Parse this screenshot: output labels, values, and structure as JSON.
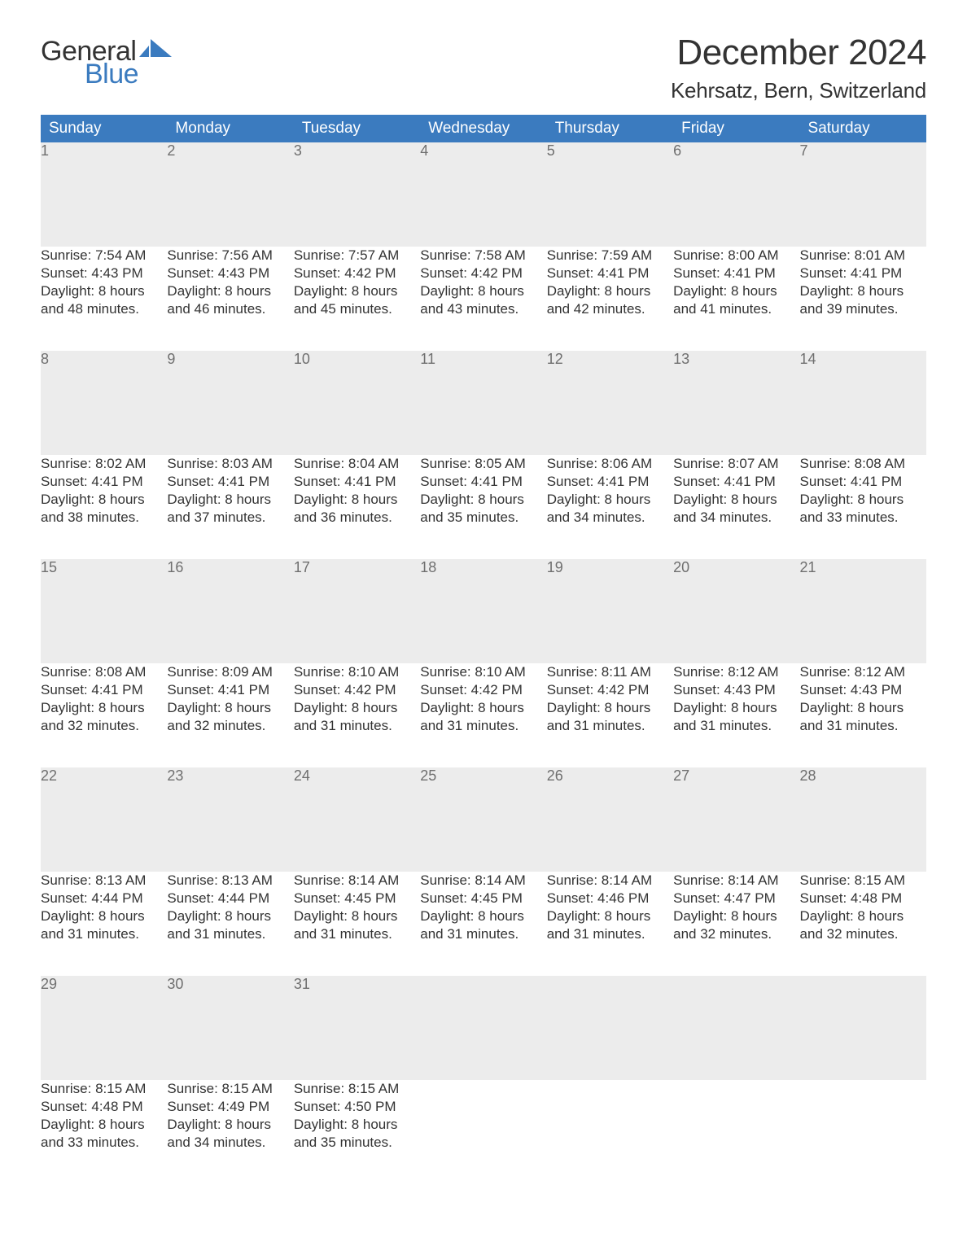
{
  "brand": {
    "word1": "General",
    "word2": "Blue",
    "text_color_dark": "#333333",
    "text_color_blue": "#3b7bbf",
    "sail_color": "#3b7bbf"
  },
  "header": {
    "month_title": "December 2024",
    "location": "Kehrsatz, Bern, Switzerland",
    "title_color": "#333333",
    "title_fontsize": 44,
    "location_fontsize": 26
  },
  "calendar": {
    "type": "table",
    "columns": [
      "Sunday",
      "Monday",
      "Tuesday",
      "Wednesday",
      "Thursday",
      "Friday",
      "Saturday"
    ],
    "header_bg": "#3b7bbf",
    "header_text_color": "#ffffff",
    "header_fontsize": 19,
    "daynum_bg": "#ececec",
    "daynum_color": "#6f6f6f",
    "daynum_fontsize": 18,
    "daynum_top_border_color": "#3b7bbf",
    "cell_bg": "#ffffff",
    "cell_text_color": "#333333",
    "cell_fontsize": 17,
    "weeks": [
      [
        {
          "num": "1",
          "sunrise": "Sunrise: 7:54 AM",
          "sunset": "Sunset: 4:43 PM",
          "day1": "Daylight: 8 hours",
          "day2": "and 48 minutes."
        },
        {
          "num": "2",
          "sunrise": "Sunrise: 7:56 AM",
          "sunset": "Sunset: 4:43 PM",
          "day1": "Daylight: 8 hours",
          "day2": "and 46 minutes."
        },
        {
          "num": "3",
          "sunrise": "Sunrise: 7:57 AM",
          "sunset": "Sunset: 4:42 PM",
          "day1": "Daylight: 8 hours",
          "day2": "and 45 minutes."
        },
        {
          "num": "4",
          "sunrise": "Sunrise: 7:58 AM",
          "sunset": "Sunset: 4:42 PM",
          "day1": "Daylight: 8 hours",
          "day2": "and 43 minutes."
        },
        {
          "num": "5",
          "sunrise": "Sunrise: 7:59 AM",
          "sunset": "Sunset: 4:41 PM",
          "day1": "Daylight: 8 hours",
          "day2": "and 42 minutes."
        },
        {
          "num": "6",
          "sunrise": "Sunrise: 8:00 AM",
          "sunset": "Sunset: 4:41 PM",
          "day1": "Daylight: 8 hours",
          "day2": "and 41 minutes."
        },
        {
          "num": "7",
          "sunrise": "Sunrise: 8:01 AM",
          "sunset": "Sunset: 4:41 PM",
          "day1": "Daylight: 8 hours",
          "day2": "and 39 minutes."
        }
      ],
      [
        {
          "num": "8",
          "sunrise": "Sunrise: 8:02 AM",
          "sunset": "Sunset: 4:41 PM",
          "day1": "Daylight: 8 hours",
          "day2": "and 38 minutes."
        },
        {
          "num": "9",
          "sunrise": "Sunrise: 8:03 AM",
          "sunset": "Sunset: 4:41 PM",
          "day1": "Daylight: 8 hours",
          "day2": "and 37 minutes."
        },
        {
          "num": "10",
          "sunrise": "Sunrise: 8:04 AM",
          "sunset": "Sunset: 4:41 PM",
          "day1": "Daylight: 8 hours",
          "day2": "and 36 minutes."
        },
        {
          "num": "11",
          "sunrise": "Sunrise: 8:05 AM",
          "sunset": "Sunset: 4:41 PM",
          "day1": "Daylight: 8 hours",
          "day2": "and 35 minutes."
        },
        {
          "num": "12",
          "sunrise": "Sunrise: 8:06 AM",
          "sunset": "Sunset: 4:41 PM",
          "day1": "Daylight: 8 hours",
          "day2": "and 34 minutes."
        },
        {
          "num": "13",
          "sunrise": "Sunrise: 8:07 AM",
          "sunset": "Sunset: 4:41 PM",
          "day1": "Daylight: 8 hours",
          "day2": "and 34 minutes."
        },
        {
          "num": "14",
          "sunrise": "Sunrise: 8:08 AM",
          "sunset": "Sunset: 4:41 PM",
          "day1": "Daylight: 8 hours",
          "day2": "and 33 minutes."
        }
      ],
      [
        {
          "num": "15",
          "sunrise": "Sunrise: 8:08 AM",
          "sunset": "Sunset: 4:41 PM",
          "day1": "Daylight: 8 hours",
          "day2": "and 32 minutes."
        },
        {
          "num": "16",
          "sunrise": "Sunrise: 8:09 AM",
          "sunset": "Sunset: 4:41 PM",
          "day1": "Daylight: 8 hours",
          "day2": "and 32 minutes."
        },
        {
          "num": "17",
          "sunrise": "Sunrise: 8:10 AM",
          "sunset": "Sunset: 4:42 PM",
          "day1": "Daylight: 8 hours",
          "day2": "and 31 minutes."
        },
        {
          "num": "18",
          "sunrise": "Sunrise: 8:10 AM",
          "sunset": "Sunset: 4:42 PM",
          "day1": "Daylight: 8 hours",
          "day2": "and 31 minutes."
        },
        {
          "num": "19",
          "sunrise": "Sunrise: 8:11 AM",
          "sunset": "Sunset: 4:42 PM",
          "day1": "Daylight: 8 hours",
          "day2": "and 31 minutes."
        },
        {
          "num": "20",
          "sunrise": "Sunrise: 8:12 AM",
          "sunset": "Sunset: 4:43 PM",
          "day1": "Daylight: 8 hours",
          "day2": "and 31 minutes."
        },
        {
          "num": "21",
          "sunrise": "Sunrise: 8:12 AM",
          "sunset": "Sunset: 4:43 PM",
          "day1": "Daylight: 8 hours",
          "day2": "and 31 minutes."
        }
      ],
      [
        {
          "num": "22",
          "sunrise": "Sunrise: 8:13 AM",
          "sunset": "Sunset: 4:44 PM",
          "day1": "Daylight: 8 hours",
          "day2": "and 31 minutes."
        },
        {
          "num": "23",
          "sunrise": "Sunrise: 8:13 AM",
          "sunset": "Sunset: 4:44 PM",
          "day1": "Daylight: 8 hours",
          "day2": "and 31 minutes."
        },
        {
          "num": "24",
          "sunrise": "Sunrise: 8:14 AM",
          "sunset": "Sunset: 4:45 PM",
          "day1": "Daylight: 8 hours",
          "day2": "and 31 minutes."
        },
        {
          "num": "25",
          "sunrise": "Sunrise: 8:14 AM",
          "sunset": "Sunset: 4:45 PM",
          "day1": "Daylight: 8 hours",
          "day2": "and 31 minutes."
        },
        {
          "num": "26",
          "sunrise": "Sunrise: 8:14 AM",
          "sunset": "Sunset: 4:46 PM",
          "day1": "Daylight: 8 hours",
          "day2": "and 31 minutes."
        },
        {
          "num": "27",
          "sunrise": "Sunrise: 8:14 AM",
          "sunset": "Sunset: 4:47 PM",
          "day1": "Daylight: 8 hours",
          "day2": "and 32 minutes."
        },
        {
          "num": "28",
          "sunrise": "Sunrise: 8:15 AM",
          "sunset": "Sunset: 4:48 PM",
          "day1": "Daylight: 8 hours",
          "day2": "and 32 minutes."
        }
      ],
      [
        {
          "num": "29",
          "sunrise": "Sunrise: 8:15 AM",
          "sunset": "Sunset: 4:48 PM",
          "day1": "Daylight: 8 hours",
          "day2": "and 33 minutes."
        },
        {
          "num": "30",
          "sunrise": "Sunrise: 8:15 AM",
          "sunset": "Sunset: 4:49 PM",
          "day1": "Daylight: 8 hours",
          "day2": "and 34 minutes."
        },
        {
          "num": "31",
          "sunrise": "Sunrise: 8:15 AM",
          "sunset": "Sunset: 4:50 PM",
          "day1": "Daylight: 8 hours",
          "day2": "and 35 minutes."
        },
        {
          "num": "",
          "sunrise": "",
          "sunset": "",
          "day1": "",
          "day2": ""
        },
        {
          "num": "",
          "sunrise": "",
          "sunset": "",
          "day1": "",
          "day2": ""
        },
        {
          "num": "",
          "sunrise": "",
          "sunset": "",
          "day1": "",
          "day2": ""
        },
        {
          "num": "",
          "sunrise": "",
          "sunset": "",
          "day1": "",
          "day2": ""
        }
      ]
    ]
  }
}
